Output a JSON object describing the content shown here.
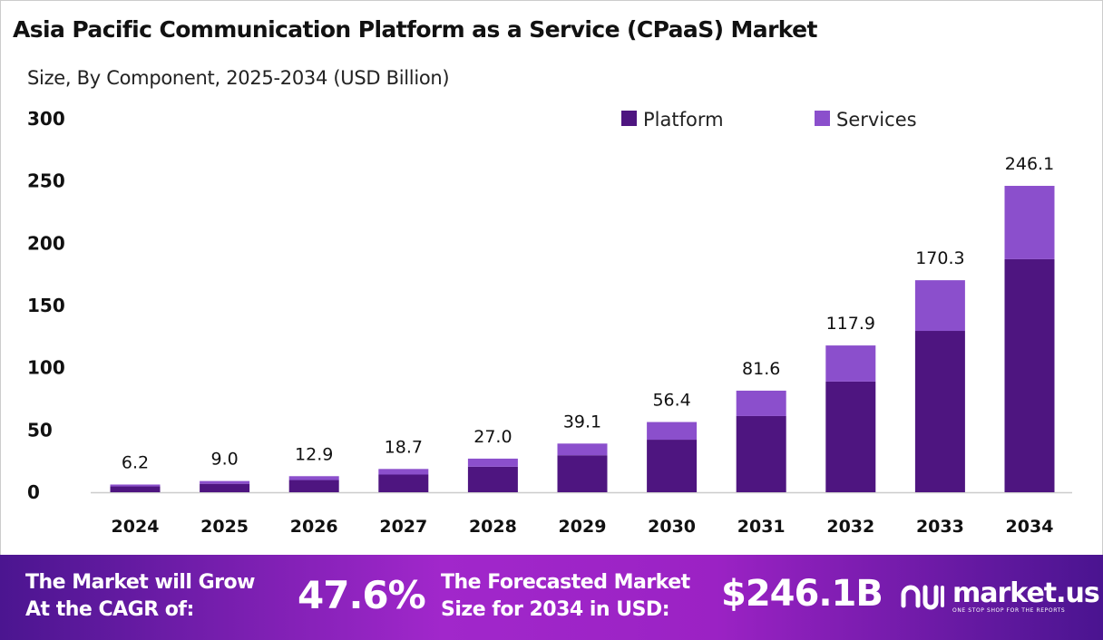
{
  "chart_data": {
    "type": "bar",
    "stacked": true,
    "title": "Asia Pacific Communication Platform as a Service (CPaaS) Market",
    "subtitle": "Size, By Component, 2025-2034 (USD Billion)",
    "categories": [
      "2024",
      "2025",
      "2026",
      "2027",
      "2028",
      "2029",
      "2030",
      "2031",
      "2032",
      "2033",
      "2034"
    ],
    "series": [
      {
        "name": "Platform",
        "color": "#4e1580",
        "values": [
          4.7,
          6.8,
          9.8,
          14.2,
          20.5,
          29.7,
          42.2,
          61.2,
          88.9,
          129.6,
          187.2
        ]
      },
      {
        "name": "Services",
        "color": "#8b4fcc",
        "values": [
          1.5,
          2.2,
          3.1,
          4.5,
          6.5,
          9.4,
          14.2,
          20.4,
          29.0,
          40.7,
          58.9
        ]
      }
    ],
    "totals": [
      "6.2",
      "9.0",
      "12.9",
      "18.7",
      "27.0",
      "39.1",
      "56.4",
      "81.6",
      "117.9",
      "170.3",
      "246.1"
    ],
    "ylim": [
      0,
      300
    ],
    "yticks": [
      "0",
      "50",
      "100",
      "150",
      "200",
      "250",
      "300"
    ],
    "grid": false,
    "legend": "top-right"
  },
  "footer": {
    "cagr_label_line1": "The Market will Grow",
    "cagr_label_line2": "At the CAGR of:",
    "cagr_value": "47.6%",
    "forecast_label_line1": "The Forecasted Market",
    "forecast_label_line2": "Size for 2034 in USD:",
    "forecast_value": "$246.1B",
    "logo_name": "market.us",
    "logo_tagline": "ONE STOP SHOP FOR THE REPORTS"
  }
}
